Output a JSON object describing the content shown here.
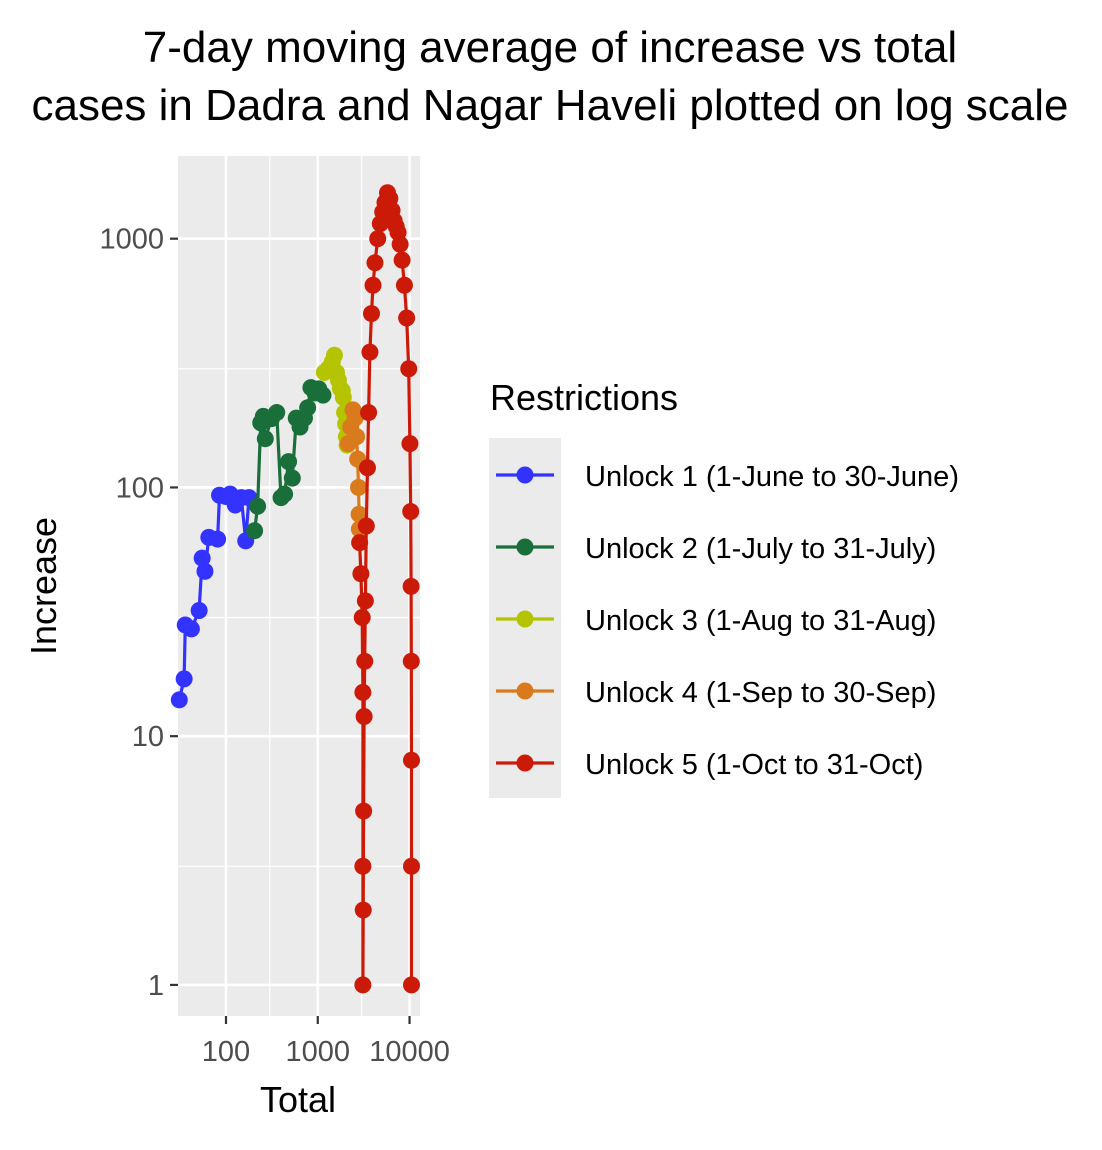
{
  "chart_data": {
    "type": "line",
    "title_lines": [
      "7-day moving average of increase vs total",
      "cases in Dadra and Nagar Haveli plotted on log scale"
    ],
    "xlabel": "Total",
    "ylabel": "Increase",
    "x_scale": "log10",
    "y_scale": "log10",
    "xlim": [
      30,
      13000
    ],
    "ylim": [
      0.75,
      2150
    ],
    "x_ticks": [
      {
        "value": 100,
        "label": "100"
      },
      {
        "value": 1000,
        "label": "1000"
      },
      {
        "value": 10000,
        "label": "10000"
      }
    ],
    "y_ticks": [
      {
        "value": 1,
        "label": "1"
      },
      {
        "value": 10,
        "label": "10"
      },
      {
        "value": 100,
        "label": "100"
      },
      {
        "value": 1000,
        "label": "1000"
      }
    ],
    "grid": true,
    "legend": {
      "title": "Restrictions",
      "placement": "right"
    },
    "series": [
      {
        "name": "Unlock 1 (1-June to 30-June)",
        "color": "#3333ff",
        "points": [
          [
            31,
            14
          ],
          [
            35,
            17
          ],
          [
            36,
            28
          ],
          [
            42,
            27
          ],
          [
            51,
            32
          ],
          [
            55,
            52
          ],
          [
            59,
            46
          ],
          [
            65,
            63
          ],
          [
            81,
            62
          ],
          [
            85,
            93
          ],
          [
            99,
            92
          ],
          [
            111,
            94
          ],
          [
            126,
            85
          ],
          [
            147,
            91
          ],
          [
            164,
            61
          ],
          [
            178,
            91
          ]
        ]
      },
      {
        "name": "Unlock 2 (1-July to 31-July)",
        "color": "#1a6e3a",
        "points": [
          [
            205,
            67
          ],
          [
            221,
            84
          ],
          [
            239,
            182
          ],
          [
            255,
            193
          ],
          [
            268,
            157
          ],
          [
            313,
            189
          ],
          [
            357,
            200
          ],
          [
            398,
            91
          ],
          [
            435,
            94
          ],
          [
            481,
            127
          ],
          [
            528,
            109
          ],
          [
            583,
            190
          ],
          [
            641,
            175
          ],
          [
            716,
            190
          ],
          [
            776,
            209
          ],
          [
            842,
            252
          ],
          [
            933,
            240
          ],
          [
            1025,
            249
          ],
          [
            1140,
            235
          ]
        ]
      },
      {
        "name": "Unlock 3 (1-Aug to 31-Aug)",
        "color": "#b5c400",
        "points": [
          [
            1180,
            290
          ],
          [
            1300,
            300
          ],
          [
            1440,
            320
          ],
          [
            1520,
            340
          ],
          [
            1600,
            290
          ],
          [
            1680,
            270
          ],
          [
            1760,
            250
          ],
          [
            1850,
            245
          ],
          [
            1900,
            230
          ],
          [
            1960,
            200
          ],
          [
            2010,
            180
          ],
          [
            2050,
            160
          ],
          [
            2090,
            148
          ]
        ]
      },
      {
        "name": "Unlock 4 (1-Sep to 30-Sep)",
        "color": "#d97a1c",
        "points": [
          [
            2150,
            150
          ],
          [
            2280,
            175
          ],
          [
            2420,
            205
          ],
          [
            2550,
            190
          ],
          [
            2650,
            160
          ],
          [
            2720,
            130
          ],
          [
            2780,
            100
          ],
          [
            2820,
            78
          ],
          [
            2840,
            68
          ]
        ]
      },
      {
        "name": "Unlock 5 (1-Oct to 31-Oct)",
        "color": "#cc1a08",
        "points": [
          [
            2860,
            60
          ],
          [
            2950,
            45
          ],
          [
            3050,
            30
          ],
          [
            3100,
            15
          ],
          [
            3100,
            3
          ],
          [
            3100,
            1
          ],
          [
            3130,
            2
          ],
          [
            3160,
            5
          ],
          [
            3200,
            12
          ],
          [
            3250,
            20
          ],
          [
            3300,
            35
          ],
          [
            3380,
            70
          ],
          [
            3480,
            120
          ],
          [
            3580,
            200
          ],
          [
            3700,
            350
          ],
          [
            3850,
            500
          ],
          [
            4000,
            650
          ],
          [
            4200,
            800
          ],
          [
            4500,
            1000
          ],
          [
            4800,
            1150
          ],
          [
            5100,
            1280
          ],
          [
            5400,
            1400
          ],
          [
            5750,
            1530
          ],
          [
            6100,
            1450
          ],
          [
            6450,
            1300
          ],
          [
            6800,
            1180
          ],
          [
            7150,
            1120
          ],
          [
            7500,
            1060
          ],
          [
            7900,
            950
          ],
          [
            8300,
            820
          ],
          [
            8800,
            650
          ],
          [
            9300,
            480
          ],
          [
            9800,
            300
          ],
          [
            10100,
            150
          ],
          [
            10300,
            80
          ],
          [
            10400,
            40
          ],
          [
            10450,
            20
          ],
          [
            10500,
            8
          ],
          [
            10500,
            3
          ],
          [
            10500,
            1
          ]
        ]
      }
    ]
  }
}
